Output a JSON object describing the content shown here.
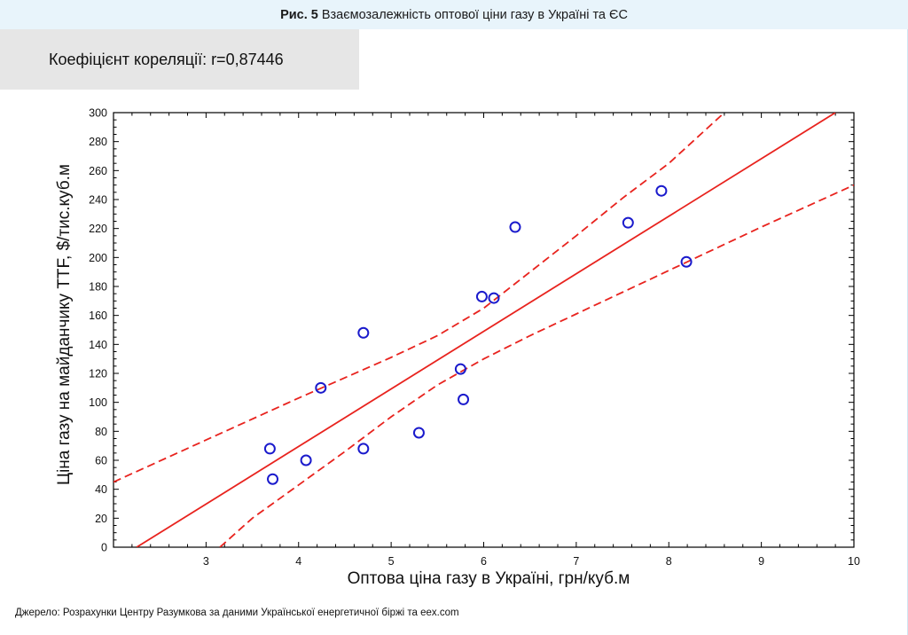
{
  "header": {
    "fig_label": "Рис. 5",
    "title": "Взаємозалежність оптової ціни газу в Україні та ЄС"
  },
  "correlation": {
    "text": "Коефіцієнт кореляції: r=0,87446"
  },
  "source": "Джерело: Розрахунки Центру Разумкова за даними Української енергетичної біржі та eex.com",
  "colors": {
    "title_bg": "#e8f4fb",
    "corr_bg": "#e6e6e6",
    "points": "#1a1acc",
    "fit_line": "#e8231e"
  },
  "chart_data": {
    "type": "scatter",
    "xlabel": "Оптова ціна газу в Україні, грн/куб.м",
    "ylabel": "Ціна газу на майданчику TTF, $/тис.куб.м",
    "xlim": [
      2,
      10
    ],
    "ylim": [
      0,
      300
    ],
    "x_ticks": [
      "3",
      "4",
      "5",
      "6",
      "7",
      "8",
      "9",
      "10"
    ],
    "y_ticks": [
      "0",
      "20",
      "40",
      "60",
      "80",
      "100",
      "120",
      "140",
      "160",
      "180",
      "200",
      "220",
      "240",
      "260",
      "280",
      "300"
    ],
    "points": [
      {
        "x": 3.69,
        "y": 68
      },
      {
        "x": 3.72,
        "y": 47
      },
      {
        "x": 4.08,
        "y": 60
      },
      {
        "x": 4.24,
        "y": 110
      },
      {
        "x": 4.7,
        "y": 148
      },
      {
        "x": 4.7,
        "y": 68
      },
      {
        "x": 5.3,
        "y": 79
      },
      {
        "x": 5.75,
        "y": 123
      },
      {
        "x": 5.78,
        "y": 102
      },
      {
        "x": 5.98,
        "y": 173
      },
      {
        "x": 6.11,
        "y": 172
      },
      {
        "x": 6.34,
        "y": 221
      },
      {
        "x": 7.56,
        "y": 224
      },
      {
        "x": 7.92,
        "y": 246
      },
      {
        "x": 8.19,
        "y": 197
      }
    ],
    "fit_line": {
      "x": [
        2.25,
        9.8
      ],
      "y": [
        0,
        300
      ]
    },
    "confidence_upper": {
      "x": [
        2,
        3,
        4,
        5,
        5.5,
        6,
        6.5,
        7,
        7.5,
        8,
        8.6
      ],
      "y": [
        45,
        74,
        103,
        131,
        146,
        165,
        190,
        215,
        241,
        265,
        300
      ]
    },
    "confidence_lower": {
      "x": [
        3.15,
        3.5,
        4,
        4.5,
        5,
        5.5,
        6,
        6.5,
        7,
        7.5,
        8,
        8.5,
        9,
        10
      ],
      "y": [
        0,
        20,
        43,
        66,
        90,
        112,
        130,
        146,
        161,
        176,
        191,
        206,
        221,
        250
      ]
    },
    "grid": false,
    "legend": "none"
  }
}
